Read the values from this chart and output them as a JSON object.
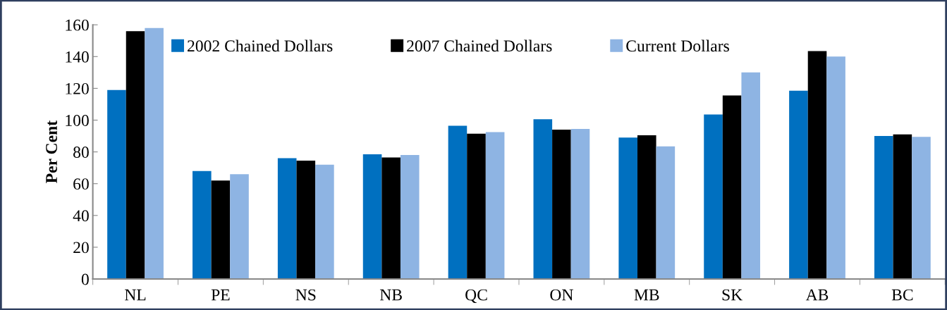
{
  "chart_data": {
    "type": "bar",
    "ylabel": "Per Cent",
    "categories": [
      "NL",
      "PE",
      "NS",
      "NB",
      "QC",
      "ON",
      "MB",
      "SK",
      "AB",
      "BC"
    ],
    "series": [
      {
        "name": "2002 Chained Dollars",
        "color": "#0070c0",
        "values": [
          119,
          68,
          76,
          78.5,
          96.5,
          100.5,
          89,
          103.5,
          118.5,
          90
        ]
      },
      {
        "name": "2007 Chained Dollars",
        "color": "#000000",
        "values": [
          156,
          62,
          74.5,
          76.5,
          91.5,
          94,
          90.5,
          115.5,
          143.5,
          91
        ]
      },
      {
        "name": "Current Dollars",
        "color": "#8eb4e3",
        "values": [
          158,
          66,
          72,
          78,
          92.5,
          94.5,
          83.5,
          130,
          140,
          89.5
        ]
      }
    ],
    "ylim": [
      0,
      160
    ],
    "yticks": [
      0,
      20,
      40,
      60,
      80,
      100,
      120,
      140,
      160
    ],
    "grid": false,
    "legend": "top"
  }
}
